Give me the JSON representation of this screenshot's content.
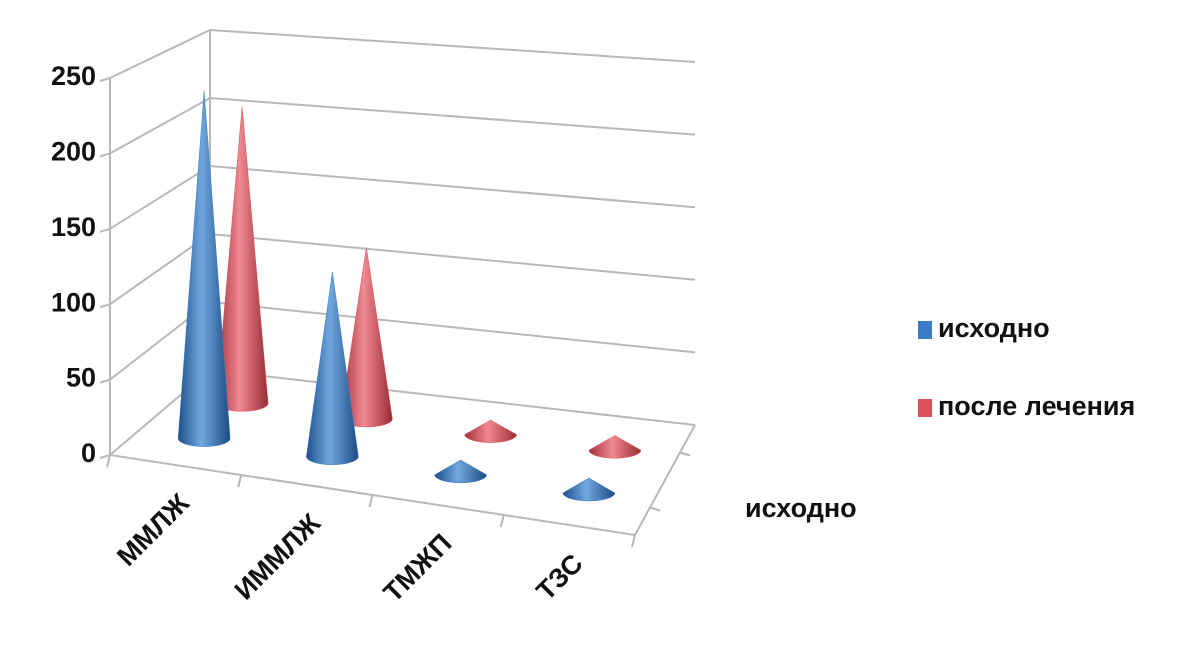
{
  "chart_data": {
    "type": "cone3d",
    "categories": [
      "ММЛЖ",
      "ИММЛЖ",
      "ТМЖП",
      "ТЗС"
    ],
    "series": [
      {
        "name": "исходно",
        "color": "#3a7cc6",
        "values": [
          237,
          125,
          10,
          10
        ]
      },
      {
        "name": "после лечения",
        "color": "#d9505a",
        "values": [
          210,
          120,
          10,
          10
        ]
      }
    ],
    "depth_label": "исходно",
    "ylim": [
      0,
      250
    ],
    "yticks": [
      0,
      50,
      100,
      150,
      200,
      250
    ],
    "grid": true,
    "legend": "right"
  }
}
